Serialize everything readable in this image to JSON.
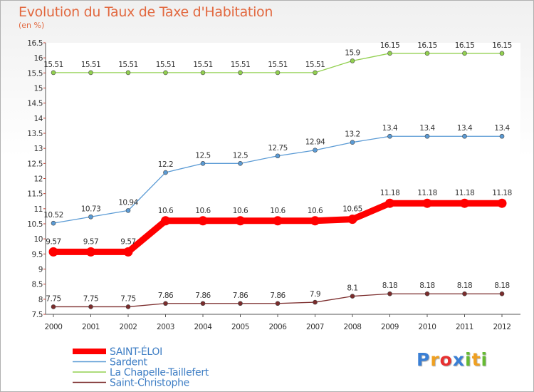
{
  "chart_data": {
    "type": "line",
    "title": "Evolution du Taux de Taxe d'Habitation",
    "subtitle": "(en %)",
    "x": [
      "2000",
      "2001",
      "2002",
      "2003",
      "2004",
      "2005",
      "2006",
      "2007",
      "2008",
      "2009",
      "2010",
      "2011",
      "2012"
    ],
    "yticks": [
      "7.5",
      "8",
      "8.5",
      "9",
      "9.5",
      "10",
      "10.5",
      "11",
      "11.5",
      "12",
      "12.5",
      "13",
      "13.5",
      "14",
      "14.5",
      "15",
      "15.5",
      "16",
      "16.5"
    ],
    "ylim": [
      7.5,
      16.5
    ],
    "grid": false,
    "legend_position": "bottom-left",
    "series": [
      {
        "name": "SAINT-ÉLOI",
        "color": "#ff0000",
        "values": [
          9.57,
          9.57,
          9.57,
          10.6,
          10.6,
          10.6,
          10.6,
          10.6,
          10.65,
          11.18,
          11.18,
          11.18,
          11.18
        ],
        "labels": [
          "9.57",
          "9.57",
          "9.57",
          "10.6",
          "10.6",
          "10.6",
          "10.6",
          "10.6",
          "10.65",
          "11.18",
          "11.18",
          "11.18",
          "11.18"
        ]
      },
      {
        "name": "Sardent",
        "color": "#5b9bd5",
        "values": [
          10.52,
          10.73,
          10.94,
          12.2,
          12.5,
          12.5,
          12.75,
          12.94,
          13.2,
          13.4,
          13.4,
          13.4,
          13.4
        ],
        "labels": [
          "10.52",
          "10.73",
          "10.94",
          "12.2",
          "12.5",
          "12.5",
          "12.75",
          "12.94",
          "13.2",
          "13.4",
          "13.4",
          "13.4",
          "13.4"
        ]
      },
      {
        "name": "La Chapelle-Taillefert",
        "color": "#92d050",
        "values": [
          15.51,
          15.51,
          15.51,
          15.51,
          15.51,
          15.51,
          15.51,
          15.51,
          15.9,
          16.15,
          16.15,
          16.15,
          16.15
        ],
        "labels": [
          "15.51",
          "15.51",
          "15.51",
          "15.51",
          "15.51",
          "15.51",
          "15.51",
          "15.51",
          "15.9",
          "16.15",
          "16.15",
          "16.15",
          "16.15"
        ]
      },
      {
        "name": "Saint-Christophe",
        "color": "#7b2c2c",
        "values": [
          7.75,
          7.75,
          7.75,
          7.86,
          7.86,
          7.86,
          7.86,
          7.9,
          8.1,
          8.18,
          8.18,
          8.18,
          8.18
        ],
        "labels": [
          "7.75",
          "7.75",
          "7.75",
          "7.86",
          "7.86",
          "7.86",
          "7.86",
          "7.9",
          "8.1",
          "8.18",
          "8.18",
          "8.18",
          "8.18"
        ]
      }
    ]
  },
  "logo": {
    "letters": [
      "P",
      "r",
      "o",
      "x",
      "i",
      "t",
      "i"
    ],
    "colors": [
      "#3a7fd5",
      "#f0a020",
      "#e83030",
      "#3a7fd5",
      "#66bb33",
      "#f0a020",
      "#66bb33"
    ]
  }
}
